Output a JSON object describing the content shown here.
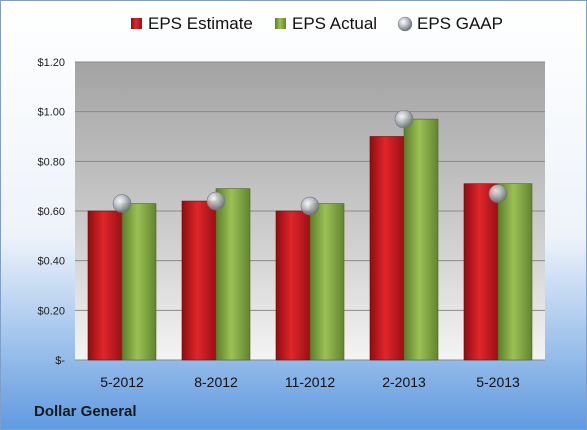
{
  "chart_data": {
    "type": "bar",
    "categories": [
      "5-2012",
      "8-2012",
      "11-2012",
      "2-2013",
      "5-2013"
    ],
    "series": [
      {
        "name": "EPS Estimate",
        "kind": "bar",
        "values": [
          0.6,
          0.64,
          0.6,
          0.9,
          0.71
        ]
      },
      {
        "name": "EPS Actual",
        "kind": "bar",
        "values": [
          0.63,
          0.69,
          0.63,
          0.97,
          0.71
        ]
      },
      {
        "name": "EPS GAAP",
        "kind": "marker",
        "values": [
          0.63,
          0.64,
          0.62,
          0.97,
          0.67
        ]
      }
    ],
    "y_ticks": [
      {
        "value": 0,
        "label": "$-"
      },
      {
        "value": 0.2,
        "label": "$0.20"
      },
      {
        "value": 0.4,
        "label": "$0.40"
      },
      {
        "value": 0.6,
        "label": "$0.60"
      },
      {
        "value": 0.8,
        "label": "$0.80"
      },
      {
        "value": 1.0,
        "label": "$1.00"
      },
      {
        "value": 1.2,
        "label": "$1.20"
      }
    ],
    "ylim": [
      0,
      1.2
    ],
    "grid": true,
    "legend_position": "top",
    "company_label": "Dollar General",
    "colors": {
      "estimate": "#c0161b",
      "actual": "#7fa63f",
      "gaap": "#9aa0a8",
      "background_top": "#ffffff",
      "background_bottom": "#5f9ae0",
      "plot_top": "#a7a7a7",
      "plot_bottom": "#f2f2f2"
    }
  }
}
